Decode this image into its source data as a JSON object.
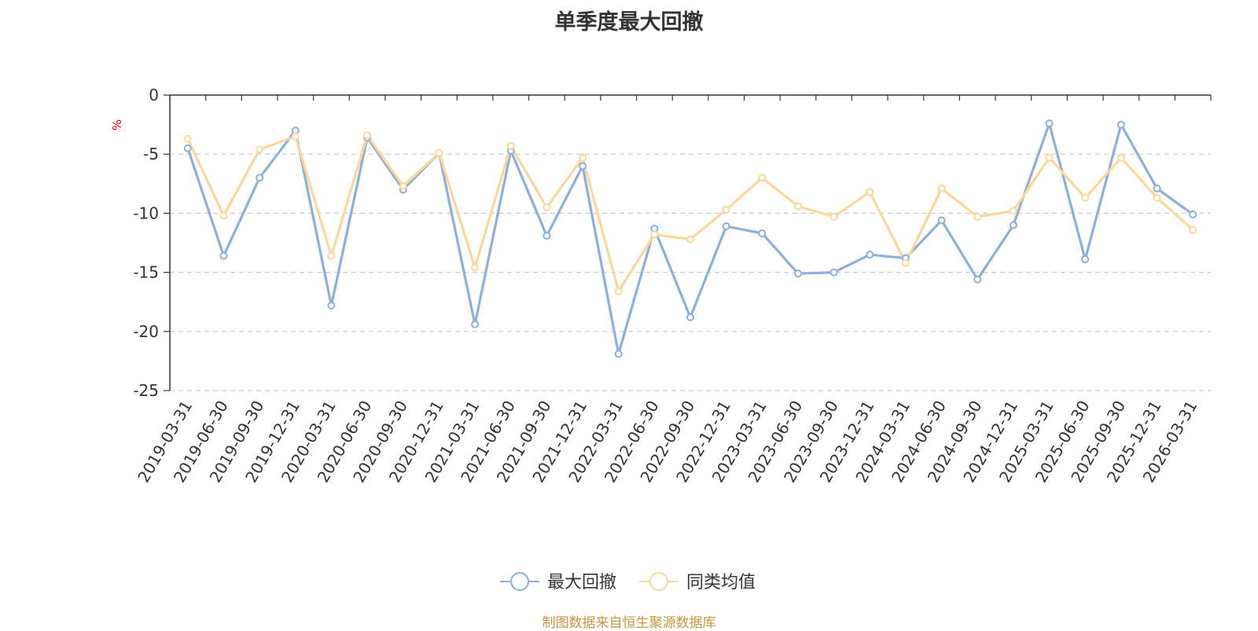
{
  "chart_data": {
    "type": "line",
    "title": "单季度最大回撤",
    "ylabel": "%",
    "ylim": [
      -25,
      0
    ],
    "yticks": [
      0,
      -5,
      -10,
      -15,
      -20,
      -25
    ],
    "grid": true,
    "legend_position": "bottom-center",
    "categories": [
      "2019-03-31",
      "2019-06-30",
      "2019-09-30",
      "2019-12-31",
      "2020-03-31",
      "2020-06-30",
      "2020-09-30",
      "2020-12-31",
      "2021-03-31",
      "2021-06-30",
      "2021-09-30",
      "2021-12-31",
      "2022-03-31",
      "2022-06-30",
      "2022-09-30",
      "2022-12-31",
      "2023-03-31",
      "2023-06-30",
      "2023-09-30",
      "2023-12-31",
      "2024-03-31",
      "2024-06-30",
      "2024-09-30",
      "2024-12-31",
      "2025-03-31",
      "2025-06-30",
      "2025-09-30",
      "2025-12-31",
      "2026-03-31"
    ],
    "series": [
      {
        "name": "最大回撤",
        "color": "#8eaedb",
        "values": [
          -4.5,
          -13.6,
          -7.0,
          -3.0,
          -17.8,
          -3.6,
          -8.0,
          -4.9,
          -19.4,
          -4.7,
          -11.9,
          -6.0,
          -21.9,
          -11.3,
          -18.8,
          -11.1,
          -11.7,
          -15.1,
          -15.0,
          -13.5,
          -13.8,
          -10.6,
          -15.6,
          -11.0,
          -2.4,
          -13.9,
          -2.5,
          -7.9,
          -10.1
        ]
      },
      {
        "name": "同类均值",
        "color": "#fbd89a",
        "values": [
          -3.7,
          -10.2,
          -4.6,
          -3.5,
          -13.6,
          -3.4,
          -7.7,
          -4.9,
          -14.6,
          -4.3,
          -9.5,
          -5.3,
          -16.6,
          -11.8,
          -12.2,
          -9.7,
          -7.0,
          -9.4,
          -10.3,
          -8.2,
          -14.2,
          -7.9,
          -10.3,
          -9.8,
          -5.3,
          -8.7,
          -5.3,
          -8.7,
          -11.4
        ]
      }
    ]
  },
  "source_text": "制图数据来自恒生聚源数据库"
}
